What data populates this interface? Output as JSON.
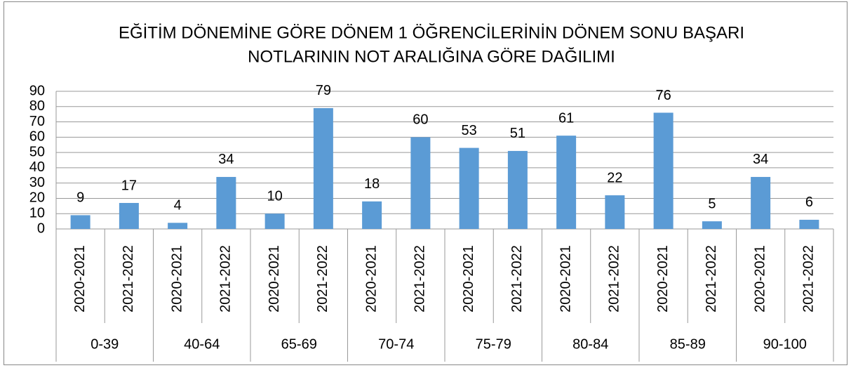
{
  "chart_data": {
    "type": "bar",
    "title": [
      "EĞİTİM DÖNEMİNE GÖRE DÖNEM 1 ÖĞRENCİLERİNİN  DÖNEM SONU BAŞARI",
      "NOTLARININ NOT ARALIĞINA GÖRE DAĞILIMI"
    ],
    "categories": [
      "2020-2021",
      "2021-2022",
      "2020-2021",
      "2021-2022",
      "2020-2021",
      "2021-2022",
      "2020-2021",
      "2021-2022",
      "2020-2021",
      "2021-2022",
      "2020-2021",
      "2021-2022",
      "2020-2021",
      "2021-2022",
      "2020-2021",
      "2021-2022"
    ],
    "category_groups": [
      "0-39",
      "40-64",
      "65-69",
      "70-74",
      "75-79",
      "80-84",
      "85-89",
      "90-100"
    ],
    "values": [
      9,
      17,
      4,
      34,
      10,
      79,
      18,
      60,
      53,
      51,
      61,
      22,
      76,
      5,
      34,
      6
    ],
    "color": "#5b9bd5",
    "ylim": [
      0,
      90
    ],
    "yticks": [
      0,
      10,
      20,
      30,
      40,
      50,
      60,
      70,
      80,
      90
    ],
    "grid": true
  }
}
